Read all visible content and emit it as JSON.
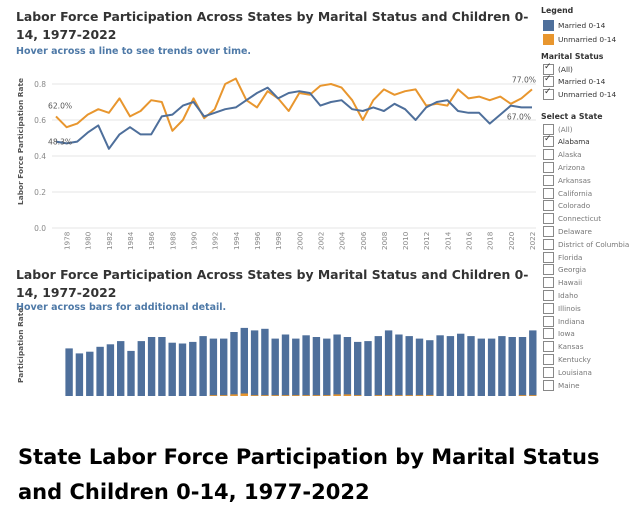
{
  "dashboard": {
    "title_top": "Labor Force Participation Across States by Marital Status and Children 0-14, 1977-2022",
    "hint_top": "Hover across a line to see trends over time.",
    "ylabel_top": "Labor Force Participation Rate",
    "title_bottom": "Labor Force Participation Across States by Marital Status and Children 0-14, 1977-2022",
    "hint_bottom": "Hover across bars for additional detail.",
    "ylabel_bottom": "Participation Rate"
  },
  "legend": {
    "title": "Legend",
    "items": [
      {
        "label": "Married 0-14",
        "color": "#4e6f9b"
      },
      {
        "label": "Unmarried 0-14",
        "color": "#e8962e"
      }
    ]
  },
  "marital_filter": {
    "title": "Marital Status",
    "options": [
      {
        "label": "(All)",
        "checked": true
      },
      {
        "label": "Married 0-14",
        "checked": true
      },
      {
        "label": "Unmarried 0-14",
        "checked": true
      }
    ]
  },
  "state_filter": {
    "title": "Select a State",
    "options": [
      {
        "label": "(All)",
        "checked": false
      },
      {
        "label": "Alabama",
        "checked": true
      },
      {
        "label": "Alaska",
        "checked": false
      },
      {
        "label": "Arizona",
        "checked": false
      },
      {
        "label": "Arkansas",
        "checked": false
      },
      {
        "label": "California",
        "checked": false
      },
      {
        "label": "Colorado",
        "checked": false
      },
      {
        "label": "Connecticut",
        "checked": false
      },
      {
        "label": "Delaware",
        "checked": false
      },
      {
        "label": "District of Columbia",
        "checked": false
      },
      {
        "label": "Florida",
        "checked": false
      },
      {
        "label": "Georgia",
        "checked": false
      },
      {
        "label": "Hawaii",
        "checked": false
      },
      {
        "label": "Idaho",
        "checked": false
      },
      {
        "label": "Illinois",
        "checked": false
      },
      {
        "label": "Indiana",
        "checked": false
      },
      {
        "label": "Iowa",
        "checked": false
      },
      {
        "label": "Kansas",
        "checked": false
      },
      {
        "label": "Kentucky",
        "checked": false
      },
      {
        "label": "Louisiana",
        "checked": false
      },
      {
        "label": "Maine",
        "checked": false
      }
    ]
  },
  "caption": "State Labor Force Participation by Marital Status and Children 0-14, 1977-2022",
  "chart_data": [
    {
      "type": "line",
      "ylim": [
        0,
        0.9
      ],
      "y_ticks": [
        "0.0",
        "0.2",
        "0.4",
        "0.6",
        "0.8"
      ],
      "x_tick_labels": [
        "1978",
        "1980",
        "1982",
        "1984",
        "1986",
        "1988",
        "1990",
        "1992",
        "1994",
        "1996",
        "1998",
        "2000",
        "2002",
        "2004",
        "2006",
        "2008",
        "2010",
        "2012",
        "2014",
        "2016",
        "2018",
        "2020",
        "2022"
      ],
      "x": [
        1977,
        1978,
        1979,
        1980,
        1981,
        1982,
        1983,
        1984,
        1985,
        1986,
        1987,
        1988,
        1989,
        1990,
        1991,
        1992,
        1993,
        1994,
        1995,
        1996,
        1997,
        1998,
        1999,
        2000,
        2001,
        2002,
        2003,
        2004,
        2005,
        2006,
        2007,
        2008,
        2009,
        2010,
        2011,
        2012,
        2013,
        2014,
        2015,
        2016,
        2017,
        2018,
        2019,
        2020,
        2021,
        2022
      ],
      "series": [
        {
          "name": "Married 0-14",
          "color": "#4e6f9b",
          "values": [
            0.48,
            0.47,
            0.48,
            0.53,
            0.57,
            0.44,
            0.52,
            0.56,
            0.52,
            0.52,
            0.62,
            0.63,
            0.68,
            0.7,
            0.62,
            0.64,
            0.66,
            0.67,
            0.71,
            0.75,
            0.78,
            0.72,
            0.75,
            0.76,
            0.75,
            0.68,
            0.7,
            0.71,
            0.66,
            0.65,
            0.67,
            0.65,
            0.69,
            0.66,
            0.6,
            0.67,
            0.7,
            0.71,
            0.65,
            0.64,
            0.64,
            0.58,
            0.63,
            0.68,
            0.67,
            0.67
          ],
          "labels": {
            "first": "48.3%",
            "last": "67.0%"
          }
        },
        {
          "name": "Unmarried 0-14",
          "color": "#e8962e",
          "values": [
            0.62,
            0.56,
            0.58,
            0.63,
            0.66,
            0.64,
            0.72,
            0.62,
            0.65,
            0.71,
            0.7,
            0.54,
            0.6,
            0.72,
            0.61,
            0.66,
            0.8,
            0.83,
            0.71,
            0.67,
            0.76,
            0.72,
            0.65,
            0.75,
            0.74,
            0.79,
            0.8,
            0.78,
            0.71,
            0.6,
            0.71,
            0.77,
            0.74,
            0.76,
            0.77,
            0.68,
            0.69,
            0.68,
            0.77,
            0.72,
            0.73,
            0.71,
            0.73,
            0.69,
            0.72,
            0.77
          ],
          "labels": {
            "first": "62.0%",
            "last": "77.0%"
          }
        }
      ]
    },
    {
      "type": "bar",
      "stacked": true,
      "x": [
        1977,
        1978,
        1979,
        1980,
        1981,
        1982,
        1983,
        1984,
        1985,
        1986,
        1987,
        1988,
        1989,
        1990,
        1991,
        1992,
        1993,
        1994,
        1995,
        1996,
        1997,
        1998,
        1999,
        2000,
        2001,
        2002,
        2003,
        2004,
        2005,
        2006,
        2007,
        2008,
        2009,
        2010,
        2011,
        2012,
        2013,
        2014,
        2015,
        2016,
        2017,
        2018,
        2019,
        2020,
        2021,
        2022
      ],
      "series": [
        {
          "name": "Married 0-14",
          "color": "#4e6f9b",
          "values": [
            0.58,
            0.52,
            0.54,
            0.6,
            0.63,
            0.67,
            0.55,
            0.67,
            0.72,
            0.72,
            0.65,
            0.64,
            0.66,
            0.73,
            0.7,
            0.7,
            0.78,
            0.83,
            0.8,
            0.82,
            0.7,
            0.75,
            0.7,
            0.74,
            0.72,
            0.7,
            0.75,
            0.72,
            0.66,
            0.67,
            0.73,
            0.8,
            0.75,
            0.73,
            0.7,
            0.68,
            0.74,
            0.73,
            0.76,
            0.73,
            0.7,
            0.7,
            0.73,
            0.72,
            0.72,
            0.8
          ]
        },
        {
          "name": "Unmarried 0-14",
          "color": "#e8962e",
          "values": [
            0,
            0,
            0,
            0,
            0,
            0,
            0,
            0,
            0,
            0,
            0,
            0,
            0,
            0,
            0.01,
            0.01,
            0.02,
            0.03,
            0.01,
            0.01,
            0.01,
            0.01,
            0.01,
            0.01,
            0.01,
            0.01,
            0.02,
            0.02,
            0.01,
            0,
            0.01,
            0.01,
            0.01,
            0.01,
            0.01,
            0.01,
            0,
            0,
            0,
            0,
            0,
            0,
            0,
            0,
            0.01,
            0.01
          ]
        }
      ]
    }
  ]
}
